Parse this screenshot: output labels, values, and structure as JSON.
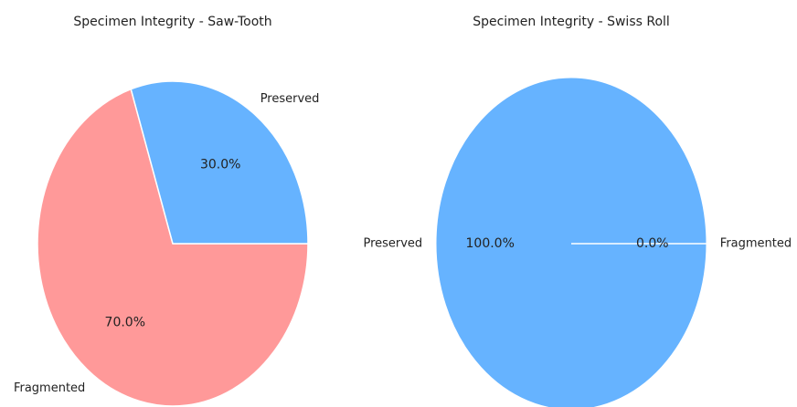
{
  "chart_data": [
    {
      "type": "pie",
      "title": "Specimen Integrity - Saw-Tooth",
      "categories": [
        "Preserved",
        "Fragmented"
      ],
      "values": [
        30.0,
        70.0
      ],
      "value_labels": [
        "30.0%",
        "70.0%"
      ],
      "colors": [
        "#66b3ff",
        "#ff9999"
      ],
      "start_angle_deg": 0,
      "direction": "counterclockwise"
    },
    {
      "type": "pie",
      "title": "Specimen Integrity - Swiss Roll",
      "categories": [
        "Preserved",
        "Fragmented"
      ],
      "values": [
        100.0,
        0.0
      ],
      "value_labels": [
        "100.0%",
        "0.0%"
      ],
      "colors": [
        "#66b3ff",
        "#ff9999"
      ],
      "start_angle_deg": 0,
      "direction": "counterclockwise"
    }
  ]
}
